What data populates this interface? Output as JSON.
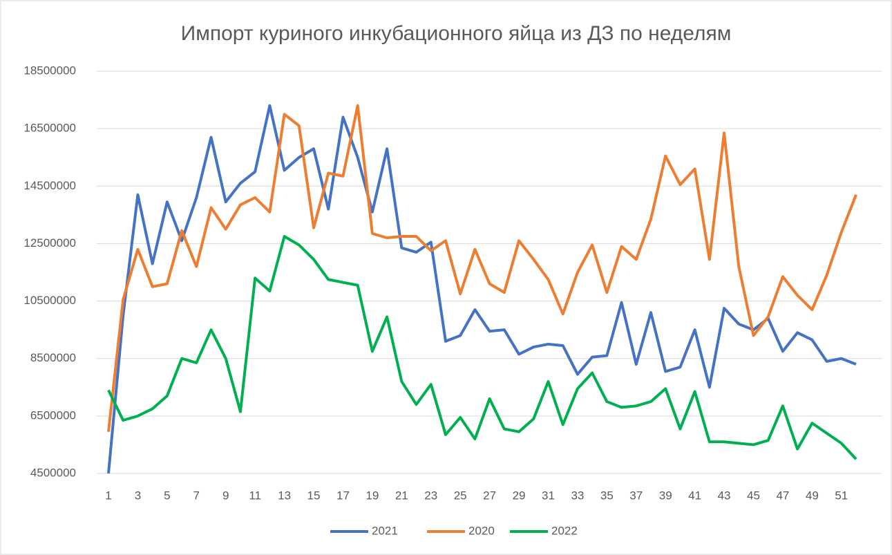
{
  "chart_data": {
    "type": "line",
    "title": "Импорт куриного инкубационного яйца из ДЗ по неделям",
    "categories": [
      1,
      null,
      3,
      null,
      5,
      null,
      7,
      null,
      9,
      null,
      11,
      null,
      13,
      null,
      15,
      null,
      17,
      null,
      19,
      null,
      21,
      null,
      23,
      null,
      25,
      null,
      27,
      null,
      29,
      null,
      31,
      null,
      33,
      null,
      35,
      null,
      37,
      null,
      39,
      null,
      41,
      null,
      43,
      null,
      45,
      null,
      47,
      null,
      49,
      null,
      51,
      null
    ],
    "series": [
      {
        "name": "2021",
        "color": "#4472c4",
        "values": [
          4500000,
          10000000,
          14200000,
          11800000,
          13950000,
          12600000,
          14100000,
          16200000,
          13950000,
          14600000,
          15000000,
          17300000,
          15050000,
          15500000,
          15800000,
          13700000,
          16900000,
          15500000,
          13600000,
          15800000,
          12350000,
          12200000,
          12550000,
          9100000,
          9300000,
          10200000,
          9450000,
          9500000,
          8650000,
          8900000,
          9000000,
          8950000,
          7950000,
          8550000,
          8600000,
          10450000,
          8300000,
          10100000,
          8050000,
          8200000,
          9500000,
          7500000,
          10250000,
          9700000,
          9500000,
          9900000,
          8750000,
          9400000,
          9150000,
          8400000,
          8500000,
          8300000
        ]
      },
      {
        "name": "2020",
        "color": "#ed7d31",
        "values": [
          5950000,
          10550000,
          12300000,
          11000000,
          11100000,
          12950000,
          11700000,
          13750000,
          13000000,
          13850000,
          14100000,
          13600000,
          17000000,
          16600000,
          13050000,
          14950000,
          14850000,
          17300000,
          12850000,
          12700000,
          12750000,
          12750000,
          12250000,
          12600000,
          10750000,
          12300000,
          11100000,
          10800000,
          12600000,
          11950000,
          11250000,
          10050000,
          11500000,
          12450000,
          10800000,
          12400000,
          11950000,
          13350000,
          15550000,
          14550000,
          15100000,
          11950000,
          16350000,
          11700000,
          9300000,
          9950000,
          11350000,
          10700000,
          10200000,
          11400000,
          12900000,
          14200000
        ]
      },
      {
        "name": "2022",
        "color": "#00b050",
        "values": [
          7400000,
          6350000,
          6500000,
          6750000,
          7200000,
          8500000,
          8350000,
          9500000,
          8500000,
          6650000,
          11300000,
          10850000,
          12750000,
          12450000,
          11950000,
          11250000,
          11150000,
          11050000,
          8750000,
          9950000,
          7700000,
          6900000,
          7600000,
          5850000,
          6450000,
          5700000,
          7100000,
          6050000,
          5950000,
          6400000,
          7700000,
          6200000,
          7450000,
          8000000,
          7000000,
          6800000,
          6850000,
          7000000,
          7450000,
          6050000,
          7350000,
          5600000,
          5600000,
          5550000,
          5500000,
          5650000,
          6850000,
          5350000,
          6250000,
          5900000,
          5550000,
          5000000
        ]
      }
    ],
    "ylim": [
      4500000,
      18500000
    ],
    "yticks": [
      4500000,
      6500000,
      8500000,
      10500000,
      12500000,
      14500000,
      16500000,
      18500000
    ],
    "grid": true,
    "legend": "bottom"
  }
}
